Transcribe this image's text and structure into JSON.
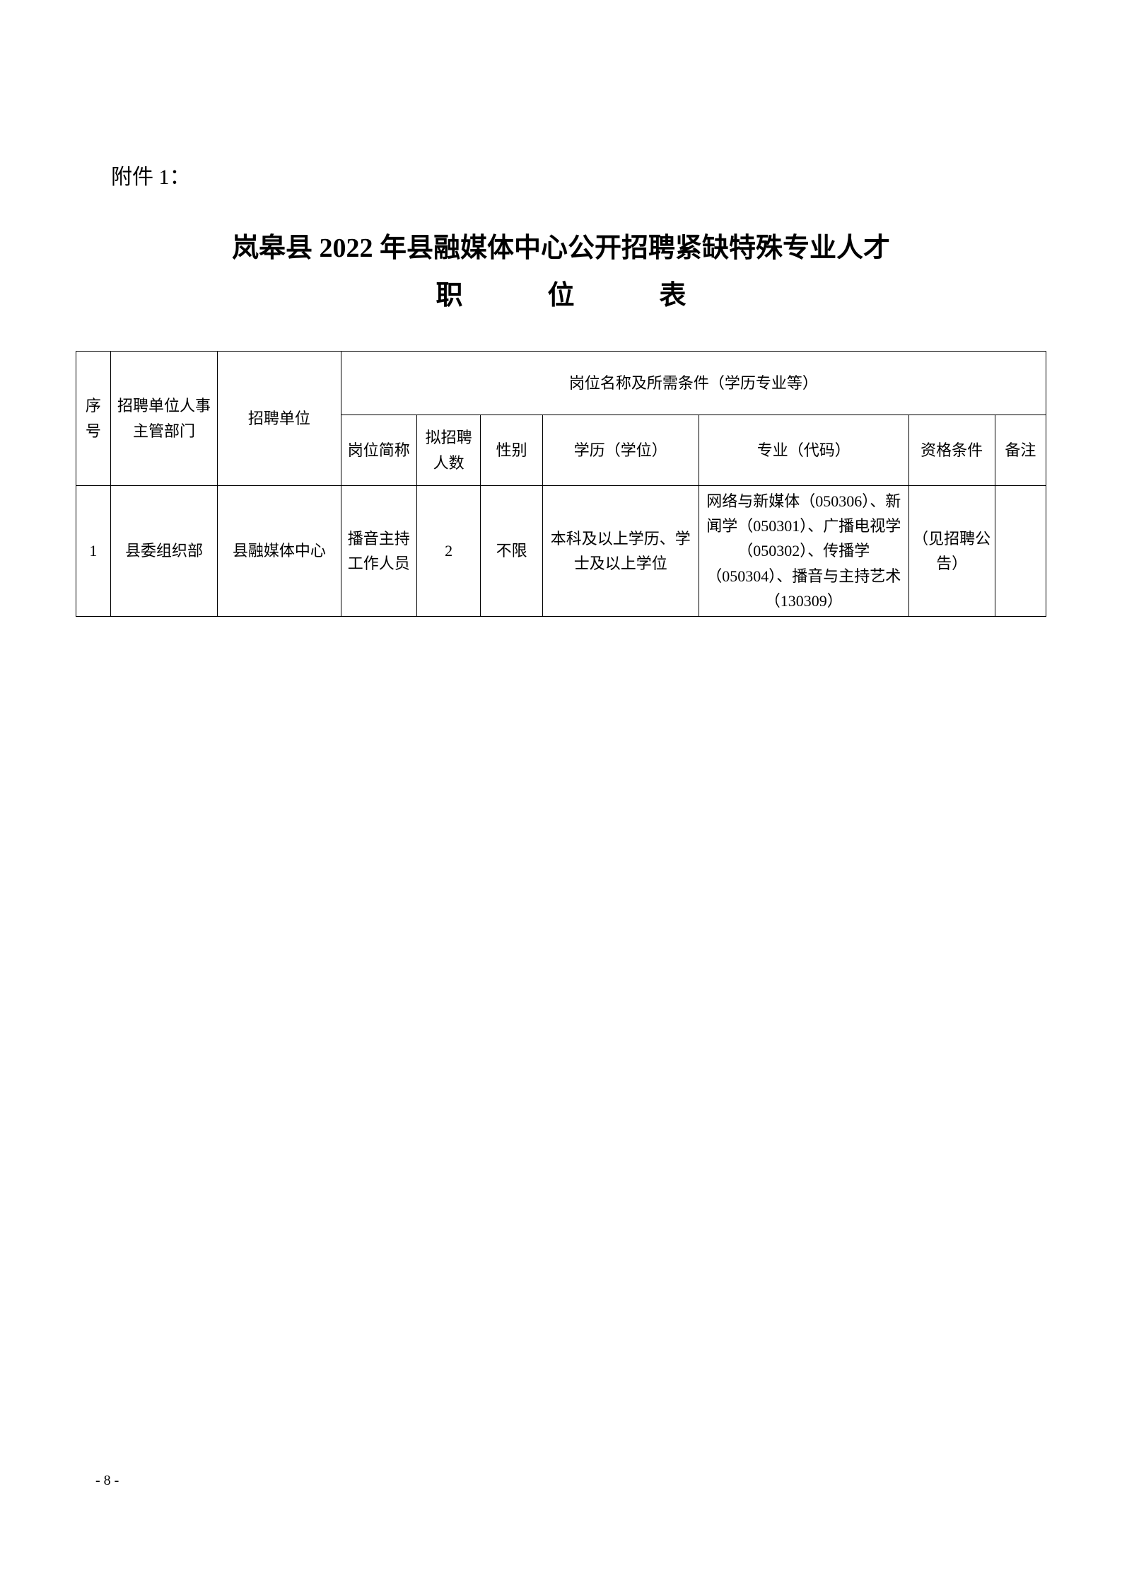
{
  "attachment_label": "附件 1：",
  "title_line1": "岚皋县 2022 年县融媒体中心公开招聘紧缺特殊专业人才",
  "title_line2": "职位表",
  "table": {
    "headers": {
      "seq": "序号",
      "dept": "招聘单位人事主管部门",
      "unit": "招聘单位",
      "conditions_group": "岗位名称及所需条件（学历专业等）",
      "position": "岗位简称",
      "count": "拟招聘人数",
      "gender": "性别",
      "education": "学历（学位）",
      "major": "专业（代码）",
      "qualification": "资格条件",
      "note": "备注"
    },
    "rows": [
      {
        "seq": "1",
        "dept": "县委组织部",
        "unit": "县融媒体中心",
        "position": "播音主持工作人员",
        "count": "2",
        "gender": "不限",
        "education": "本科及以上学历、学士及以上学位",
        "major": "网络与新媒体（050306）、新闻学（050301）、广播电视学（050302）、传播学（050304）、播音与主持艺术（130309）",
        "qualification": "（见招聘公告）",
        "note": ""
      }
    ]
  },
  "page_number": "- 8 -",
  "colors": {
    "text": "#000000",
    "background": "#ffffff",
    "border": "#000000"
  },
  "typography": {
    "attachment_fontsize": 30,
    "title_fontsize": 38,
    "table_fontsize": 22,
    "pagenum_fontsize": 20
  }
}
